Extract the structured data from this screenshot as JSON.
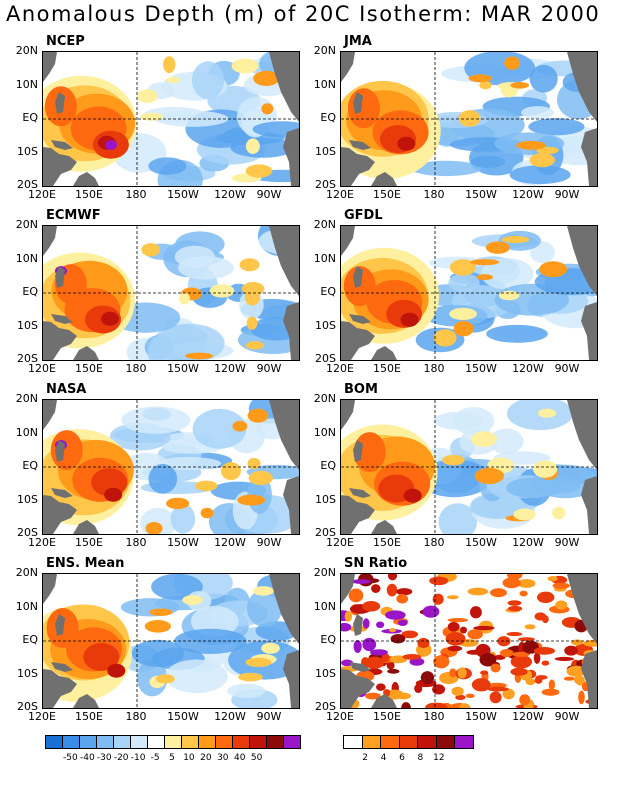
{
  "title": "Anomalous Depth (m) of 20C Isotherm: MAR 2000",
  "panels": [
    {
      "name": "NCEP"
    },
    {
      "name": "JMA"
    },
    {
      "name": "ECMWF"
    },
    {
      "name": "GFDL"
    },
    {
      "name": "NASA"
    },
    {
      "name": "BOM"
    },
    {
      "name": "ENS. Mean"
    },
    {
      "name": "SN Ratio"
    }
  ],
  "axes": {
    "y_ticks": [
      "20N",
      "10N",
      "EQ",
      "10S",
      "20S"
    ],
    "x_ticks": [
      "120E",
      "150E",
      "180",
      "150W",
      "120W",
      "90W"
    ]
  },
  "colorbars": {
    "anomaly": {
      "colors": [
        "#1a6fd6",
        "#3b8ce6",
        "#5aa5ee",
        "#7fbcf3",
        "#a8d4f8",
        "#d2eafc",
        "#ffffff",
        "#fff0a0",
        "#ffc64a",
        "#ff9a1a",
        "#ff6a10",
        "#e83a0a",
        "#c0140a",
        "#8c0a0a",
        "#9a14c8"
      ],
      "labels": [
        "-50",
        "-40",
        "-30",
        "-20",
        "-10",
        "-5",
        "5",
        "10",
        "20",
        "30",
        "40",
        "50"
      ]
    },
    "sn_ratio": {
      "colors": [
        "#ffffff",
        "#ffa020",
        "#ff6a10",
        "#e83a0a",
        "#c0140a",
        "#8c0a0a",
        "#9a14c8"
      ],
      "labels": [
        "2",
        "4",
        "6",
        "8",
        "12"
      ]
    }
  },
  "palette": {
    "land": "#707070",
    "warm": [
      "#fff0a0",
      "#ffc64a",
      "#ff9a1a",
      "#ff6a10",
      "#e83a0a",
      "#c0140a",
      "#9a14c8"
    ],
    "cool": [
      "#d2eafc",
      "#a8d4f8",
      "#7fbcf3",
      "#5aa5ee"
    ]
  }
}
